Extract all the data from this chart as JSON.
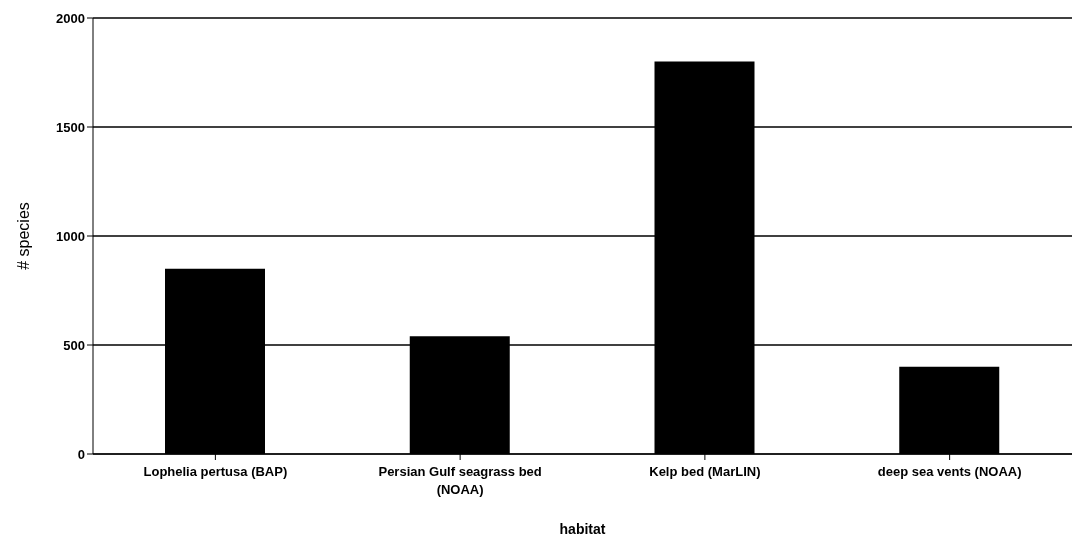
{
  "chart_data": {
    "type": "bar",
    "xlabel": "habitat",
    "ylabel": "# species",
    "categories": [
      "Lophelia pertusa (BAP)",
      "Persian Gulf seagrass bed (NOAA)",
      "Kelp bed (MarLIN)",
      "deep sea vents (NOAA)"
    ],
    "values": [
      850,
      540,
      1800,
      400
    ],
    "color": "#000000",
    "ylim": [
      0,
      2000
    ],
    "yticks": [
      0,
      500,
      1000,
      1500,
      2000
    ],
    "grid": "y",
    "legend": false
  }
}
